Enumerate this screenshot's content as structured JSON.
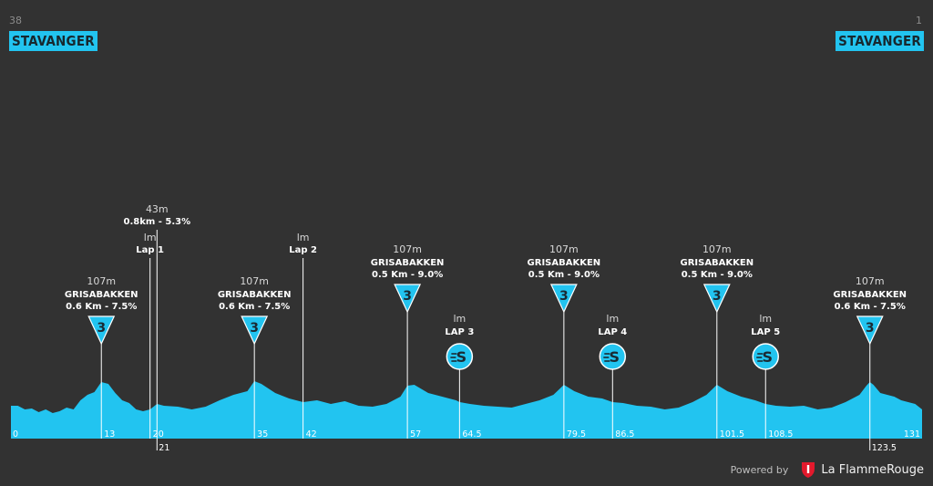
{
  "header": {
    "start_km": "38",
    "start_city": "STAVANGER",
    "end_km": "1",
    "end_city": "STAVANGER"
  },
  "footer": {
    "powered_by": "Powered by",
    "brand": "La FlammeRouge"
  },
  "colors": {
    "background": "#323232",
    "profile_fill": "#22c4f0",
    "profile_dark": "#1a9fc4",
    "marker": "#22c4f0",
    "text": "#ffffff"
  },
  "chart_data": {
    "type": "area",
    "title": "",
    "xlabel": "",
    "ylabel": "",
    "xlim": [
      0,
      131
    ],
    "x_ticks": [
      {
        "value": 0,
        "label": "0"
      },
      {
        "value": 13,
        "label": "13"
      },
      {
        "value": 20,
        "label": "20"
      },
      {
        "value": 21,
        "label": "21"
      },
      {
        "value": 35,
        "label": "35"
      },
      {
        "value": 42,
        "label": "42"
      },
      {
        "value": 57,
        "label": "57"
      },
      {
        "value": 64.5,
        "label": "64.5"
      },
      {
        "value": 79.5,
        "label": "79.5"
      },
      {
        "value": 86.5,
        "label": "86.5"
      },
      {
        "value": 101.5,
        "label": "101.5"
      },
      {
        "value": 108.5,
        "label": "108.5"
      },
      {
        "value": 123.5,
        "label": "123.5"
      },
      {
        "value": 131,
        "label": "131"
      }
    ],
    "profile": {
      "x": [
        0,
        1,
        2,
        3,
        4,
        5,
        6,
        7,
        8,
        9,
        10,
        11,
        12,
        13,
        14,
        15,
        16,
        17,
        18,
        19,
        20,
        21,
        22,
        24,
        26,
        28,
        30,
        32,
        34,
        35,
        36,
        38,
        40,
        42,
        44,
        46,
        48,
        50,
        52,
        54,
        56,
        57,
        58,
        60,
        62,
        64,
        64.5,
        66,
        68,
        70,
        72,
        74,
        76,
        78,
        79.5,
        81,
        83,
        85,
        86.5,
        88,
        90,
        92,
        94,
        96,
        98,
        100,
        101.5,
        103,
        105,
        107,
        108.5,
        110,
        112,
        114,
        116,
        118,
        120,
        121,
        122,
        123,
        123.5,
        124,
        125,
        126,
        127,
        128,
        129,
        130,
        131
      ],
      "y": [
        34,
        34,
        30,
        31,
        27,
        30,
        26,
        28,
        32,
        30,
        40,
        46,
        49,
        60,
        58,
        48,
        40,
        37,
        30,
        28,
        30,
        36,
        34,
        33,
        30,
        33,
        40,
        46,
        50,
        61,
        58,
        48,
        42,
        38,
        40,
        36,
        39,
        34,
        33,
        36,
        44,
        56,
        57,
        48,
        44,
        40,
        38,
        36,
        34,
        33,
        32,
        36,
        40,
        46,
        57,
        50,
        44,
        42,
        38,
        37,
        34,
        33,
        30,
        32,
        38,
        46,
        57,
        50,
        44,
        40,
        36,
        34,
        33,
        34,
        30,
        32,
        38,
        42,
        46,
        56,
        60,
        57,
        48,
        46,
        44,
        40,
        38,
        36,
        30
      ]
    },
    "annotations": [
      {
        "km": 13,
        "kind": "climb",
        "cat": "3",
        "alt": "107m",
        "name": "GRISABAKKEN",
        "detail": "0.6 Km - 7.5%"
      },
      {
        "km": 20,
        "kind": "lap",
        "alt": "lm",
        "name": "Lap 1"
      },
      {
        "km": 21,
        "kind": "point",
        "alt": "43m",
        "name": "0.8km - 5.3%"
      },
      {
        "km": 35,
        "kind": "climb",
        "cat": "3",
        "alt": "107m",
        "name": "GRISABAKKEN",
        "detail": "0.6 Km - 7.5%"
      },
      {
        "km": 42,
        "kind": "lap",
        "alt": "lm",
        "name": "Lap 2"
      },
      {
        "km": 57,
        "kind": "climb",
        "cat": "3",
        "alt": "107m",
        "name": "GRISABAKKEN",
        "detail": "0.5 Km - 9.0%"
      },
      {
        "km": 64.5,
        "kind": "sprint",
        "alt": "lm",
        "name": "LAP 3"
      },
      {
        "km": 79.5,
        "kind": "climb",
        "cat": "3",
        "alt": "107m",
        "name": "GRISABAKKEN",
        "detail": "0.5 Km - 9.0%"
      },
      {
        "km": 86.5,
        "kind": "sprint",
        "alt": "lm",
        "name": "LAP 4"
      },
      {
        "km": 101.5,
        "kind": "climb",
        "cat": "3",
        "alt": "107m",
        "name": "GRISABAKKEN",
        "detail": "0.5 Km - 9.0%"
      },
      {
        "km": 108.5,
        "kind": "sprint",
        "alt": "lm",
        "name": "LAP 5"
      },
      {
        "km": 123.5,
        "kind": "climb",
        "cat": "3",
        "alt": "107m",
        "name": "GRISABAKKEN",
        "detail": "0.6 Km - 7.5%"
      }
    ]
  }
}
